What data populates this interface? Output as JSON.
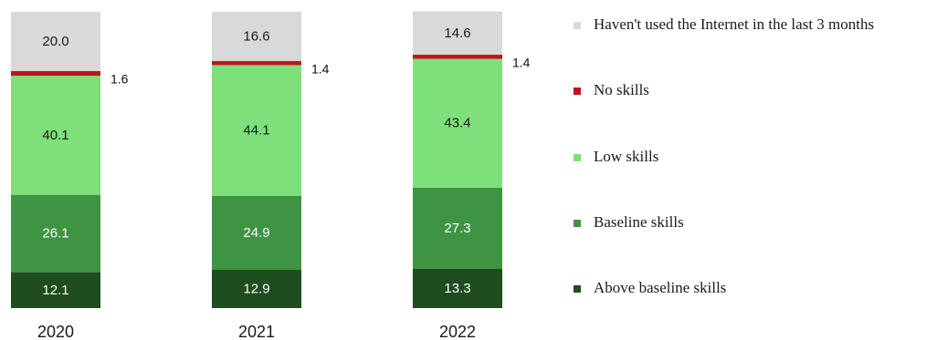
{
  "chart_data": {
    "type": "bar",
    "stacked": true,
    "categories": [
      "2020",
      "2021",
      "2022"
    ],
    "series": [
      {
        "name": "Above baseline skills",
        "color": "#1e4d20",
        "values": [
          12.1,
          12.9,
          13.3
        ],
        "labels": [
          "12.1",
          "12.9",
          "13.3"
        ]
      },
      {
        "name": "Baseline skills",
        "color": "#3e9443",
        "values": [
          26.1,
          24.9,
          27.3
        ],
        "labels": [
          "26.1",
          "24.9",
          "27.3"
        ]
      },
      {
        "name": "Low skills",
        "color": "#7ee07a",
        "values": [
          40.1,
          44.1,
          43.4
        ],
        "labels": [
          "40.1",
          "44.1",
          "43.4"
        ]
      },
      {
        "name": "No skills",
        "color": "#c0141c",
        "values": [
          1.6,
          1.4,
          1.4
        ],
        "labels": [
          "1.6",
          "1.4",
          "1.4"
        ]
      },
      {
        "name": "Haven't used the Internet in the last 3 months",
        "color": "#d9d9d9",
        "values": [
          20.0,
          16.6,
          14.6
        ],
        "labels": [
          "20.0",
          "16.6",
          "14.6"
        ]
      }
    ],
    "legend_order": [
      4,
      3,
      2,
      1,
      0
    ],
    "legend_position": "right",
    "ylim": [
      0,
      100
    ],
    "grid": false,
    "title": "",
    "xlabel": "",
    "ylabel": ""
  }
}
